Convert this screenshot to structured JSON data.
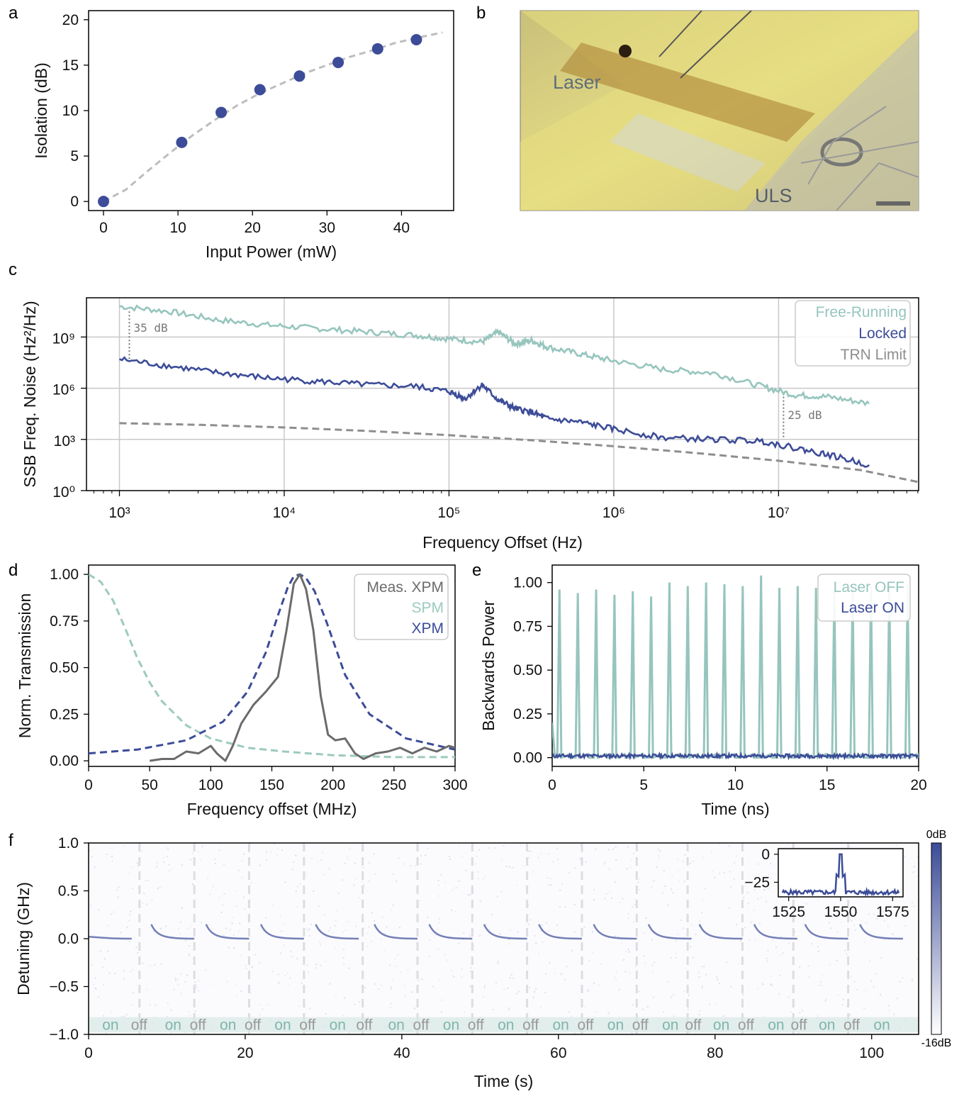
{
  "colors": {
    "free_running": "#96c5bd",
    "locked": "#3c4c98",
    "trn": "#8e8e8e",
    "meas_xpm": "#6b6b6b",
    "spm": "#9ccabf",
    "xpm": "#3c4c98",
    "laser_off": "#96c5bd",
    "laser_on": "#3c4c98",
    "fit": "#bdbdbd",
    "photo_bg": "#d6cf8a"
  },
  "panels": {
    "a": {
      "label": "a"
    },
    "b": {
      "label": "b",
      "photo_labels": {
        "laser": "Laser",
        "uls": "ULS"
      }
    },
    "c": {
      "label": "c"
    },
    "d": {
      "label": "d"
    },
    "e": {
      "label": "e"
    },
    "f": {
      "label": "f",
      "colorbar": {
        "top": "0dB",
        "bottom": "-16dB"
      },
      "state_labels": [
        "on",
        "off",
        "on",
        "off",
        "on",
        "off",
        "on",
        "off",
        "on",
        "off",
        "on",
        "off",
        "on",
        "off",
        "on",
        "off",
        "on",
        "off",
        "on",
        "off",
        "on",
        "off",
        "on",
        "off",
        "on",
        "off",
        "on",
        "off",
        "on"
      ]
    }
  },
  "chart_data": [
    {
      "id": "a",
      "type": "scatter",
      "title": "",
      "xlabel": "Input Power (mW)",
      "ylabel": "Isolation (dB)",
      "xlim": [
        -2,
        47
      ],
      "ylim": [
        -1,
        21
      ],
      "xticks": [
        0,
        10,
        20,
        30,
        40
      ],
      "yticks": [
        0,
        5,
        10,
        15,
        20
      ],
      "points": {
        "x": [
          0,
          10.5,
          15.8,
          21.0,
          26.3,
          31.5,
          36.8,
          42.0
        ],
        "y": [
          0,
          6.5,
          9.8,
          12.3,
          13.8,
          15.3,
          16.8,
          17.8
        ]
      },
      "fit": {
        "x": [
          0,
          3,
          6,
          9,
          12,
          15,
          18,
          21,
          24,
          27,
          30,
          33,
          36,
          39,
          42,
          45.5
        ],
        "y": [
          0,
          1.3,
          3.4,
          5.4,
          7.3,
          9.0,
          10.6,
          11.9,
          13.0,
          14.1,
          15.0,
          15.9,
          16.6,
          17.4,
          18.0,
          18.6
        ]
      }
    },
    {
      "id": "c",
      "type": "line",
      "xlabel": "Frequency Offset (Hz)",
      "ylabel": "SSB Freq. Noise (Hz²/Hz)",
      "xscale": "log",
      "yscale": "log",
      "xlim_log10": [
        2.8,
        7.85
      ],
      "ylim_log10": [
        0,
        11.3
      ],
      "xticks": [
        "10³",
        "10⁴",
        "10⁵",
        "10⁶",
        "10⁷"
      ],
      "yticks": [
        "10⁰",
        "10³",
        "10⁶",
        "10⁹"
      ],
      "legend": [
        "Free-Running",
        "Locked",
        "TRN Limit"
      ],
      "annotations": [
        "35 dB",
        "25 dB"
      ],
      "series": [
        {
          "name": "Free-Running",
          "log_x": [
            3.0,
            3.3,
            3.6,
            3.9,
            4.2,
            4.5,
            4.8,
            5.0,
            5.2,
            5.3,
            5.4,
            5.5,
            5.6,
            5.8,
            6.0,
            6.3,
            6.6,
            6.9,
            7.1,
            7.3,
            7.55
          ],
          "log_y": [
            10.8,
            10.5,
            10.0,
            9.7,
            9.5,
            9.3,
            9.1,
            8.9,
            8.7,
            9.3,
            8.6,
            8.8,
            8.4,
            8.0,
            7.6,
            7.1,
            6.9,
            6.1,
            5.6,
            5.5,
            5.1
          ]
        },
        {
          "name": "Locked",
          "log_x": [
            3.0,
            3.3,
            3.6,
            3.9,
            4.2,
            4.5,
            4.8,
            5.0,
            5.1,
            5.2,
            5.3,
            5.4,
            5.5,
            5.6,
            5.8,
            6.0,
            6.3,
            6.6,
            6.9,
            7.1,
            7.3,
            7.55
          ],
          "log_y": [
            7.7,
            7.3,
            6.9,
            6.6,
            6.4,
            6.2,
            6.1,
            5.8,
            5.4,
            6.2,
            5.3,
            4.8,
            4.6,
            4.2,
            4.0,
            3.6,
            3.1,
            3.0,
            2.9,
            2.5,
            2.1,
            1.5
          ]
        },
        {
          "name": "TRN Limit",
          "log_x": [
            3.0,
            3.5,
            4.0,
            4.5,
            5.0,
            5.5,
            6.0,
            6.5,
            7.0,
            7.5,
            7.85
          ],
          "log_y": [
            3.95,
            3.85,
            3.7,
            3.5,
            3.25,
            2.95,
            2.6,
            2.2,
            1.75,
            1.2,
            0.5
          ]
        }
      ]
    },
    {
      "id": "d",
      "type": "line",
      "xlabel": "Frequency offset (MHz)",
      "ylabel": "Norm. Transmission",
      "xlim": [
        0,
        300
      ],
      "ylim": [
        -0.03,
        1.05
      ],
      "xticks": [
        0,
        50,
        100,
        150,
        200,
        250,
        300
      ],
      "yticks": [
        "0.00",
        "0.25",
        "0.50",
        "0.75",
        "1.00"
      ],
      "legend": [
        "Meas. XPM",
        "SPM",
        "XPM"
      ],
      "series": [
        {
          "name": "Meas. XPM",
          "x": [
            50,
            60,
            70,
            80,
            90,
            100,
            105,
            112,
            118,
            125,
            135,
            145,
            155,
            162,
            168,
            173,
            178,
            184,
            190,
            196,
            202,
            210,
            218,
            225,
            235,
            245,
            255,
            265,
            275,
            285,
            295,
            300
          ],
          "y": [
            0.0,
            0.01,
            0.01,
            0.05,
            0.04,
            0.08,
            0.04,
            0.0,
            0.08,
            0.2,
            0.3,
            0.37,
            0.45,
            0.7,
            0.95,
            1.0,
            0.92,
            0.7,
            0.35,
            0.14,
            0.11,
            0.12,
            0.04,
            0.01,
            0.04,
            0.05,
            0.07,
            0.04,
            0.07,
            0.05,
            0.08,
            0.07
          ]
        },
        {
          "name": "SPM",
          "x": [
            0,
            10,
            20,
            30,
            40,
            50,
            60,
            80,
            100,
            130,
            160,
            200,
            250,
            300
          ],
          "y": [
            1.0,
            0.96,
            0.86,
            0.71,
            0.55,
            0.42,
            0.32,
            0.19,
            0.12,
            0.07,
            0.05,
            0.03,
            0.02,
            0.02
          ]
        },
        {
          "name": "XPM",
          "x": [
            0,
            40,
            80,
            110,
            130,
            145,
            155,
            163,
            168,
            173,
            178,
            185,
            195,
            210,
            230,
            260,
            300
          ],
          "y": [
            0.04,
            0.06,
            0.11,
            0.21,
            0.37,
            0.58,
            0.78,
            0.93,
            0.99,
            1.0,
            0.98,
            0.91,
            0.74,
            0.46,
            0.25,
            0.12,
            0.06
          ]
        }
      ]
    },
    {
      "id": "e",
      "type": "line",
      "xlabel": "Time (ns)",
      "ylabel": "Backwards Power",
      "xlim": [
        0,
        20
      ],
      "ylim": [
        -0.05,
        1.1
      ],
      "xticks": [
        0,
        5,
        10,
        15,
        20
      ],
      "yticks": [
        "0.00",
        "0.25",
        "0.50",
        "0.75",
        "1.00"
      ],
      "legend": [
        "Laser OFF",
        "Laser ON"
      ],
      "series": [
        {
          "name": "Laser OFF",
          "pulse_times": [
            0.4,
            1.4,
            2.4,
            3.4,
            4.4,
            5.4,
            6.4,
            7.4,
            8.4,
            9.4,
            10.4,
            11.4,
            12.4,
            13.4,
            14.4,
            15.4,
            16.4,
            17.4,
            18.4,
            19.4
          ],
          "pulse_peaks": [
            0.96,
            0.94,
            0.96,
            0.93,
            0.95,
            0.92,
            1.0,
            0.98,
            1.0,
            0.99,
            0.98,
            1.04,
            0.97,
            0.98,
            0.97,
            0.96,
            0.96,
            0.98,
            0.99,
            0.99
          ]
        },
        {
          "name": "Laser ON",
          "level": 0.01
        }
      ]
    },
    {
      "id": "f",
      "type": "heatmap",
      "xlabel": "Time (s)",
      "ylabel": "Detuning (GHz)",
      "xlim": [
        0,
        106
      ],
      "ylim": [
        -1.0,
        1.0
      ],
      "xticks": [
        0,
        20,
        40,
        60,
        80,
        100
      ],
      "yticks": [
        "−1.0",
        "−0.5",
        "0.0",
        "0.5",
        "1.0"
      ],
      "cycle_starts": [
        0,
        8,
        15,
        22,
        29,
        36.5,
        43.5,
        50.5,
        57.5,
        64.5,
        71.5,
        78,
        85,
        91.5,
        98.5
      ],
      "on_duration": 5.5,
      "inset": {
        "type": "line",
        "xticks": [
          1525,
          1550,
          1575
        ],
        "yticks": [
          "0",
          "−25"
        ],
        "xlim": [
          1520,
          1580
        ],
        "ylim": [
          -38,
          5
        ],
        "peak_x": 1550,
        "peak_y": 0,
        "floor": -34
      }
    }
  ]
}
